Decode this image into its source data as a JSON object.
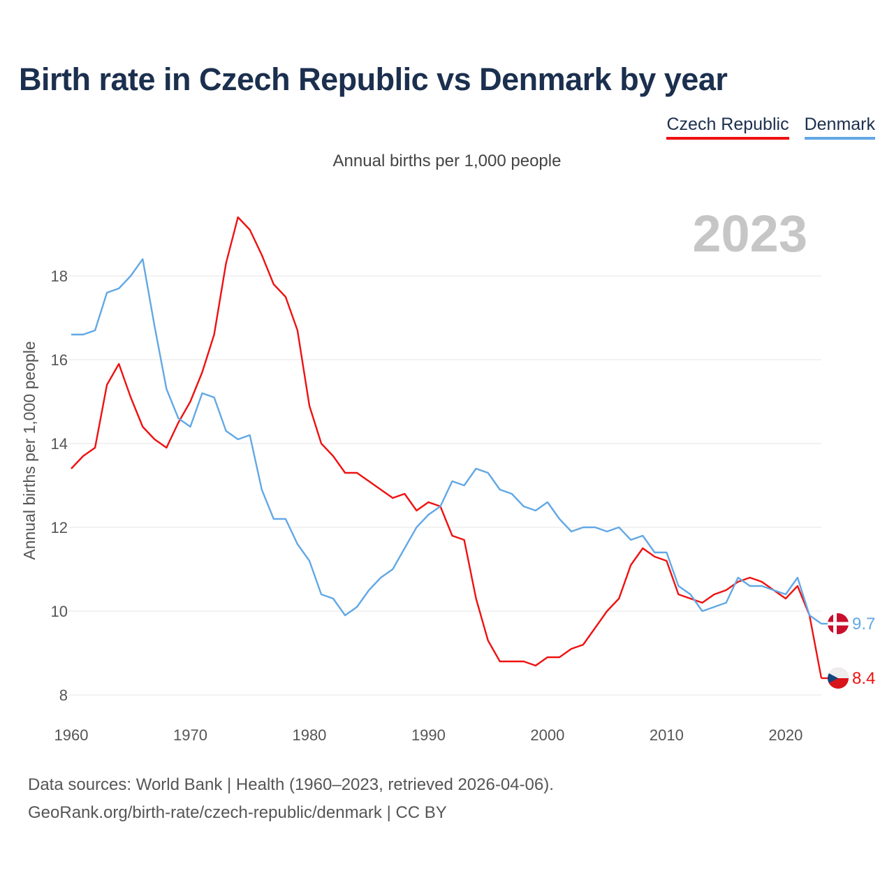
{
  "title": "Birth rate in Czech Republic vs Denmark by year",
  "subtitle": "Annual births per 1,000 people",
  "legend": {
    "czech": "Czech Republic",
    "denmark": "Denmark"
  },
  "colors": {
    "czech": "#ee1111",
    "denmark": "#62a8e5",
    "title": "#1b2f4e"
  },
  "footer": {
    "line1": "Data sources: World Bank | Health (1960–2023, retrieved 2026-04-06).",
    "line2": "GeoRank.org/birth-rate/czech-republic/denmark | CC BY"
  },
  "chart_data": {
    "type": "line",
    "title": "Birth rate in Czech Republic vs Denmark by year",
    "ylabel": "Annual births per 1,000 people",
    "xlabel": "",
    "xlim": [
      1960,
      2023
    ],
    "ylim": [
      8,
      19.5
    ],
    "x_ticks": [
      1960,
      1970,
      1980,
      1990,
      2000,
      2010,
      2020
    ],
    "y_ticks": [
      8,
      10,
      12,
      14,
      16,
      18
    ],
    "watermark_year": "2023",
    "x": [
      1960,
      1961,
      1962,
      1963,
      1964,
      1965,
      1966,
      1967,
      1968,
      1969,
      1970,
      1971,
      1972,
      1973,
      1974,
      1975,
      1976,
      1977,
      1978,
      1979,
      1980,
      1981,
      1982,
      1983,
      1984,
      1985,
      1986,
      1987,
      1988,
      1989,
      1990,
      1991,
      1992,
      1993,
      1994,
      1995,
      1996,
      1997,
      1998,
      1999,
      2000,
      2001,
      2002,
      2003,
      2004,
      2005,
      2006,
      2007,
      2008,
      2009,
      2010,
      2011,
      2012,
      2013,
      2014,
      2015,
      2016,
      2017,
      2018,
      2019,
      2020,
      2021,
      2022,
      2023
    ],
    "series": [
      {
        "name": "Czech Republic",
        "key": "czech",
        "values": [
          13.4,
          13.7,
          13.9,
          15.4,
          15.9,
          15.1,
          14.4,
          14.1,
          13.9,
          14.5,
          15.0,
          15.7,
          16.6,
          18.3,
          19.4,
          19.1,
          18.5,
          17.8,
          17.5,
          16.7,
          14.9,
          14.0,
          13.7,
          13.3,
          13.3,
          13.1,
          12.9,
          12.7,
          12.8,
          12.4,
          12.6,
          12.5,
          11.8,
          11.7,
          10.3,
          9.3,
          8.8,
          8.8,
          8.8,
          8.7,
          8.9,
          8.9,
          9.1,
          9.2,
          9.6,
          10.0,
          10.3,
          11.1,
          11.5,
          11.3,
          11.2,
          10.4,
          10.3,
          10.2,
          10.4,
          10.5,
          10.7,
          10.8,
          10.7,
          10.5,
          10.3,
          10.6,
          9.9,
          8.4
        ],
        "end_label": "8.4"
      },
      {
        "name": "Denmark",
        "key": "denmark",
        "values": [
          16.6,
          16.6,
          16.7,
          17.6,
          17.7,
          18.0,
          18.4,
          16.8,
          15.3,
          14.6,
          14.4,
          15.2,
          15.1,
          14.3,
          14.1,
          14.2,
          12.9,
          12.2,
          12.2,
          11.6,
          11.2,
          10.4,
          10.3,
          9.9,
          10.1,
          10.5,
          10.8,
          11.0,
          11.5,
          12.0,
          12.3,
          12.5,
          13.1,
          13.0,
          13.4,
          13.3,
          12.9,
          12.8,
          12.5,
          12.4,
          12.6,
          12.2,
          11.9,
          12.0,
          12.0,
          11.9,
          12.0,
          11.7,
          11.8,
          11.4,
          11.4,
          10.6,
          10.4,
          10.0,
          10.1,
          10.2,
          10.8,
          10.6,
          10.6,
          10.5,
          10.4,
          10.8,
          9.9,
          9.7
        ],
        "end_label": "9.7"
      }
    ]
  }
}
